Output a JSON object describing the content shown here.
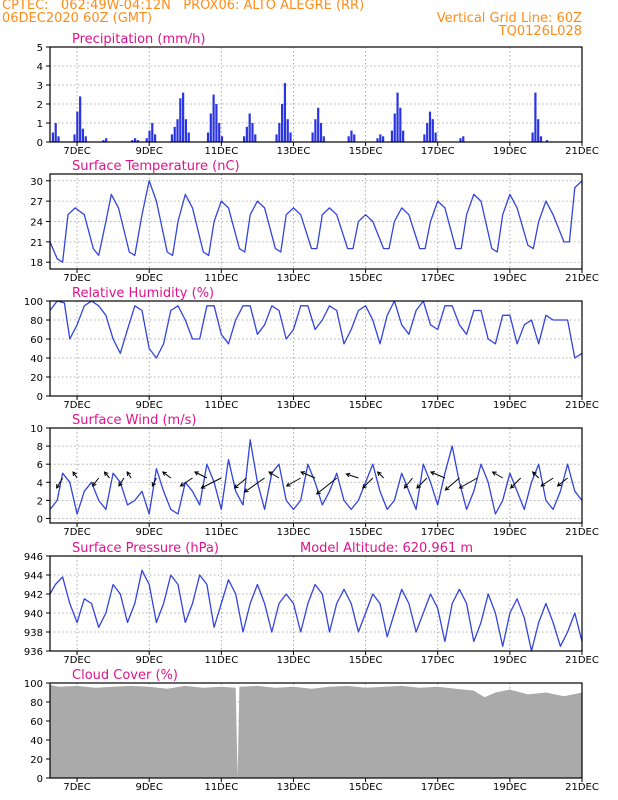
{
  "header": {
    "line1": "CPTEC:   062:49W-04:12N   PROX06: ALTO ALEGRE (RR)",
    "line2": "06DEC2020 60Z (GMT)",
    "right1": "Vertical Grid Line: 60Z",
    "right2": "TQ0126L028"
  },
  "x_labels": [
    "7DEC",
    "9DEC",
    "11DEC",
    "13DEC",
    "15DEC",
    "17DEC",
    "19DEC",
    "21DEC"
  ],
  "colors": {
    "line": "#3344dd",
    "bar": "#2a34e0",
    "cloud": "#aaaaaa",
    "title": "#e0138c",
    "header": "#ff8c1a"
  },
  "chart_data": [
    {
      "id": "precip",
      "type": "bar",
      "title": "Precipitation (mm/h)",
      "ylim": [
        0,
        5
      ],
      "yticks": [
        0,
        1,
        2,
        3,
        4,
        5
      ],
      "x_range_days": [
        6.25,
        21.0
      ],
      "events": [
        {
          "day": 6.3,
          "values": [
            0.5,
            1.0,
            0.3
          ]
        },
        {
          "day": 6.9,
          "values": [
            0.4,
            1.6,
            2.4,
            0.7,
            0.3
          ]
        },
        {
          "day": 7.7,
          "values": [
            0.1,
            0.2
          ]
        },
        {
          "day": 8.5,
          "values": [
            0.1,
            0.2,
            0.1
          ]
        },
        {
          "day": 8.9,
          "values": [
            0.2,
            0.6,
            1.0,
            0.4
          ]
        },
        {
          "day": 9.6,
          "values": [
            0.4,
            0.8,
            1.2,
            2.3,
            2.6,
            1.2,
            0.5
          ]
        },
        {
          "day": 10.6,
          "values": [
            0.5,
            1.5,
            2.5,
            2.0,
            1.0,
            0.3
          ]
        },
        {
          "day": 11.6,
          "values": [
            0.3,
            0.8,
            1.5,
            1.0,
            0.4
          ]
        },
        {
          "day": 12.5,
          "values": [
            0.4,
            1.0,
            2.0,
            3.1,
            1.2,
            0.5
          ]
        },
        {
          "day": 13.5,
          "values": [
            0.5,
            1.2,
            1.8,
            1.0,
            0.3
          ]
        },
        {
          "day": 14.5,
          "values": [
            0.3,
            0.6,
            0.4
          ]
        },
        {
          "day": 15.3,
          "values": [
            0.2,
            0.4,
            0.3
          ]
        },
        {
          "day": 15.7,
          "values": [
            0.6,
            1.5,
            2.6,
            1.8,
            0.6
          ]
        },
        {
          "day": 16.6,
          "values": [
            0.4,
            1.0,
            1.6,
            1.2,
            0.5
          ]
        },
        {
          "day": 17.6,
          "values": [
            0.2,
            0.3
          ]
        },
        {
          "day": 19.6,
          "values": [
            0.5,
            2.6,
            1.2,
            0.3
          ]
        },
        {
          "day": 20.0,
          "values": [
            0.1
          ]
        }
      ]
    },
    {
      "id": "temp",
      "type": "line",
      "title": "Surface Temperature (nC)",
      "ylim": [
        17,
        31
      ],
      "yticks": [
        18,
        21,
        24,
        27,
        30
      ],
      "x": [
        6.25,
        6.45,
        6.6,
        6.75,
        6.95,
        7.2,
        7.45,
        7.6,
        7.8,
        7.95,
        8.15,
        8.45,
        8.6,
        8.8,
        9.0,
        9.2,
        9.5,
        9.65,
        9.8,
        10.0,
        10.2,
        10.5,
        10.65,
        10.8,
        11.0,
        11.2,
        11.5,
        11.65,
        11.8,
        12.0,
        12.2,
        12.5,
        12.65,
        12.8,
        13.0,
        13.2,
        13.5,
        13.65,
        13.8,
        14.0,
        14.2,
        14.5,
        14.65,
        14.8,
        15.0,
        15.2,
        15.5,
        15.65,
        15.8,
        16.0,
        16.2,
        16.5,
        16.65,
        16.8,
        17.0,
        17.2,
        17.5,
        17.65,
        17.8,
        18.0,
        18.2,
        18.5,
        18.65,
        18.8,
        19.0,
        19.2,
        19.5,
        19.65,
        19.8,
        20.0,
        20.2,
        20.5,
        20.65,
        20.8,
        21.0
      ],
      "y": [
        21,
        18.5,
        18,
        25,
        26,
        25,
        20,
        19,
        24,
        28,
        26,
        19.5,
        19,
        25,
        30,
        27,
        19.5,
        19,
        24,
        28,
        26,
        19.5,
        19,
        24,
        27,
        26,
        20,
        19.5,
        25,
        27,
        26,
        20,
        19.5,
        25,
        26,
        25,
        20,
        20,
        25,
        26,
        25,
        20,
        20,
        24,
        25,
        24,
        20,
        20,
        24,
        26,
        25,
        20,
        20,
        24,
        27,
        26,
        20,
        20,
        25,
        28,
        27,
        20,
        19.5,
        25,
        28,
        26,
        20.5,
        20,
        24,
        27,
        25,
        21,
        21,
        29,
        30
      ]
    },
    {
      "id": "rh",
      "type": "line",
      "title": "Relative Humidity (%)",
      "ylim": [
        0,
        100
      ],
      "yticks": [
        0,
        20,
        40,
        60,
        80,
        100
      ],
      "x": [
        6.25,
        6.45,
        6.65,
        6.8,
        7.0,
        7.2,
        7.4,
        7.6,
        7.8,
        8.0,
        8.2,
        8.4,
        8.6,
        8.8,
        9.0,
        9.2,
        9.4,
        9.6,
        9.8,
        10.0,
        10.2,
        10.4,
        10.6,
        10.8,
        11.0,
        11.2,
        11.4,
        11.6,
        11.8,
        12.0,
        12.2,
        12.4,
        12.6,
        12.8,
        13.0,
        13.2,
        13.4,
        13.6,
        13.8,
        14.0,
        14.2,
        14.4,
        14.6,
        14.8,
        15.0,
        15.2,
        15.4,
        15.6,
        15.8,
        16.0,
        16.2,
        16.4,
        16.6,
        16.8,
        17.0,
        17.2,
        17.4,
        17.6,
        17.8,
        18.0,
        18.2,
        18.4,
        18.6,
        18.8,
        19.0,
        19.2,
        19.4,
        19.6,
        19.8,
        20.0,
        20.2,
        20.4,
        20.6,
        20.8,
        21.0
      ],
      "y": [
        90,
        100,
        98,
        60,
        75,
        95,
        100,
        95,
        85,
        60,
        45,
        70,
        95,
        90,
        50,
        40,
        55,
        90,
        95,
        80,
        60,
        60,
        95,
        95,
        65,
        55,
        80,
        95,
        95,
        65,
        75,
        95,
        90,
        60,
        70,
        95,
        95,
        70,
        80,
        95,
        90,
        55,
        70,
        90,
        95,
        80,
        55,
        85,
        100,
        75,
        65,
        90,
        100,
        75,
        70,
        95,
        95,
        75,
        65,
        90,
        90,
        60,
        55,
        85,
        85,
        55,
        75,
        80,
        55,
        85,
        80,
        80,
        80,
        40,
        45
      ]
    },
    {
      "id": "wind",
      "type": "line",
      "title": "Surface Wind (m/s)",
      "ylim": [
        -0.5,
        10
      ],
      "yticks": [
        0,
        2,
        4,
        6,
        8,
        10
      ],
      "x": [
        6.25,
        6.45,
        6.6,
        6.8,
        7.0,
        7.2,
        7.4,
        7.6,
        7.8,
        8.0,
        8.2,
        8.4,
        8.6,
        8.8,
        9.0,
        9.2,
        9.4,
        9.6,
        9.8,
        10.0,
        10.2,
        10.4,
        10.6,
        10.8,
        11.0,
        11.2,
        11.4,
        11.6,
        11.8,
        12.0,
        12.2,
        12.4,
        12.6,
        12.8,
        13.0,
        13.2,
        13.4,
        13.6,
        13.8,
        14.0,
        14.2,
        14.4,
        14.6,
        14.8,
        15.0,
        15.2,
        15.4,
        15.6,
        15.8,
        16.0,
        16.2,
        16.4,
        16.6,
        16.8,
        17.0,
        17.2,
        17.4,
        17.6,
        17.8,
        18.0,
        18.2,
        18.4,
        18.6,
        18.8,
        19.0,
        19.2,
        19.4,
        19.6,
        19.8,
        20.0,
        20.2,
        20.4,
        20.6,
        20.8,
        21.0
      ],
      "y": [
        1,
        2,
        5,
        4,
        0.5,
        3,
        4,
        2,
        1,
        5,
        4,
        1.5,
        2,
        3,
        0.5,
        5.5,
        3,
        1,
        0.5,
        4,
        3,
        1.5,
        6,
        4,
        1,
        6.5,
        3,
        1.5,
        8.7,
        4,
        1,
        5,
        6,
        2,
        1,
        2,
        6,
        4,
        1.5,
        3,
        5,
        2,
        1,
        2,
        4,
        6,
        3,
        1,
        2,
        5,
        3,
        1,
        6,
        4,
        1.5,
        5,
        8,
        4,
        1,
        3,
        6,
        4,
        0.5,
        2,
        5,
        3,
        1,
        4,
        6,
        2,
        1,
        3,
        6,
        3,
        2
      ],
      "arrows": [
        {
          "day": 6.6,
          "dx": -6,
          "dy": 10
        },
        {
          "day": 7.0,
          "dx": -4,
          "dy": -6
        },
        {
          "day": 7.6,
          "dx": -6,
          "dy": 8
        },
        {
          "day": 7.9,
          "dx": -5,
          "dy": -6
        },
        {
          "day": 8.3,
          "dx": -5,
          "dy": 8
        },
        {
          "day": 8.5,
          "dx": -4,
          "dy": -6
        },
        {
          "day": 9.2,
          "dx": -4,
          "dy": 8
        },
        {
          "day": 9.6,
          "dx": -8,
          "dy": -6
        },
        {
          "day": 10.2,
          "dx": -12,
          "dy": 8
        },
        {
          "day": 10.6,
          "dx": -12,
          "dy": -6
        },
        {
          "day": 11.0,
          "dx": -20,
          "dy": 10
        },
        {
          "day": 11.7,
          "dx": -12,
          "dy": 10
        },
        {
          "day": 12.2,
          "dx": -20,
          "dy": 14
        },
        {
          "day": 12.6,
          "dx": -10,
          "dy": -6
        },
        {
          "day": 13.2,
          "dx": -14,
          "dy": 8
        },
        {
          "day": 13.6,
          "dx": -14,
          "dy": -6
        },
        {
          "day": 14.2,
          "dx": -20,
          "dy": 16
        },
        {
          "day": 14.8,
          "dx": -12,
          "dy": -4
        },
        {
          "day": 15.2,
          "dx": -10,
          "dy": 10
        },
        {
          "day": 15.5,
          "dx": -6,
          "dy": -6
        },
        {
          "day": 16.3,
          "dx": -8,
          "dy": 10
        },
        {
          "day": 16.7,
          "dx": -10,
          "dy": 10
        },
        {
          "day": 17.2,
          "dx": -14,
          "dy": -6
        },
        {
          "day": 17.6,
          "dx": -14,
          "dy": 12
        },
        {
          "day": 18.1,
          "dx": -18,
          "dy": 10
        },
        {
          "day": 18.8,
          "dx": -10,
          "dy": -6
        },
        {
          "day": 19.3,
          "dx": -10,
          "dy": 10
        },
        {
          "day": 19.8,
          "dx": -6,
          "dy": -6
        },
        {
          "day": 20.2,
          "dx": -12,
          "dy": 8
        },
        {
          "day": 20.6,
          "dx": -10,
          "dy": 8
        }
      ]
    },
    {
      "id": "press",
      "type": "line",
      "title": "Surface Pressure (hPa)",
      "annotation": "Model Altitude: 620.961  m",
      "ylim": [
        936,
        946
      ],
      "yticks": [
        936,
        938,
        940,
        942,
        944,
        946
      ],
      "x": [
        6.25,
        6.4,
        6.6,
        6.8,
        7.0,
        7.2,
        7.4,
        7.6,
        7.8,
        8.0,
        8.2,
        8.4,
        8.6,
        8.8,
        9.0,
        9.2,
        9.4,
        9.6,
        9.8,
        10.0,
        10.2,
        10.4,
        10.6,
        10.8,
        11.0,
        11.2,
        11.4,
        11.6,
        11.8,
        12.0,
        12.2,
        12.4,
        12.6,
        12.8,
        13.0,
        13.2,
        13.4,
        13.6,
        13.8,
        14.0,
        14.2,
        14.4,
        14.6,
        14.8,
        15.0,
        15.2,
        15.4,
        15.6,
        15.8,
        16.0,
        16.2,
        16.4,
        16.6,
        16.8,
        17.0,
        17.2,
        17.4,
        17.6,
        17.8,
        18.0,
        18.2,
        18.4,
        18.6,
        18.8,
        19.0,
        19.2,
        19.4,
        19.6,
        19.8,
        20.0,
        20.2,
        20.4,
        20.6,
        20.8,
        21.0
      ],
      "y": [
        942,
        943,
        943.8,
        941,
        939,
        941.5,
        941,
        938.5,
        940,
        943,
        942,
        939,
        941,
        944.5,
        943,
        939,
        941,
        944,
        943,
        939,
        941,
        944,
        943,
        938.5,
        941,
        943.5,
        942,
        938,
        941,
        943,
        941,
        938,
        941,
        942,
        941,
        938,
        941,
        943,
        942,
        938,
        941,
        942.5,
        941,
        938,
        940,
        942,
        941,
        937.5,
        940,
        942.5,
        941,
        938,
        940,
        942,
        940.5,
        937,
        941,
        942.5,
        941,
        937,
        939,
        942,
        940,
        936.5,
        940,
        941.5,
        939.5,
        936,
        939,
        941,
        939,
        936.5,
        938,
        940,
        937
      ]
    },
    {
      "id": "cloud",
      "type": "area",
      "title": "Cloud Cover (%)",
      "ylim": [
        0,
        100
      ],
      "yticks": [
        0,
        20,
        40,
        60,
        80,
        100
      ],
      "x": [
        6.25,
        6.5,
        7.0,
        7.5,
        8.0,
        8.5,
        9.0,
        9.5,
        10.0,
        10.5,
        11.0,
        11.4,
        11.45,
        11.5,
        12.0,
        12.5,
        13.0,
        13.5,
        14.0,
        14.5,
        15.0,
        15.5,
        16.0,
        16.5,
        17.0,
        17.5,
        18.0,
        18.3,
        18.6,
        19.0,
        19.5,
        20.0,
        20.5,
        21.0
      ],
      "y": [
        98,
        96,
        97,
        95,
        96,
        97,
        96,
        94,
        97,
        95,
        96,
        95,
        0,
        96,
        97,
        95,
        96,
        94,
        96,
        97,
        95,
        96,
        97,
        95,
        96,
        94,
        92,
        85,
        90,
        93,
        88,
        90,
        86,
        90
      ]
    }
  ]
}
